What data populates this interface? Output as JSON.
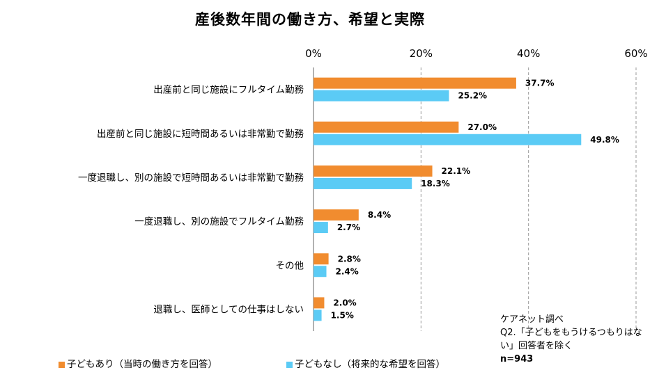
{
  "chart_data": {
    "type": "bar",
    "orientation": "horizontal",
    "title": "産後数年間の働き方、希望と実際",
    "categories": [
      "出産前と同じ施設にフルタイム勤務",
      "出産前と同じ施設に短時間あるいは非常勤で勤務",
      "一度退職し、別の施設で短時間あるいは非常勤で勤務",
      "一度退職し、別の施設でフルタイム勤務",
      "その他",
      "退職し、医師としての仕事はしない"
    ],
    "series": [
      {
        "name": "子どもあり（当時の働き方を回答）",
        "color": "#F18C2F",
        "values": [
          37.7,
          27.0,
          22.1,
          8.4,
          2.8,
          2.0
        ],
        "labels": [
          "37.7%",
          "27.0%",
          "22.1%",
          "8.4%",
          "2.8%",
          "2.0%"
        ]
      },
      {
        "name": "子どもなし（将来的な希望を回答）",
        "color": "#5BCBF5",
        "values": [
          25.2,
          49.8,
          18.3,
          2.7,
          2.4,
          1.5
        ],
        "labels": [
          "25.2%",
          "49.8%",
          "18.3%",
          "2.7%",
          "2.4%",
          "1.5%"
        ]
      }
    ],
    "xlim": [
      0,
      60
    ],
    "xticks": [
      0,
      20,
      40,
      60
    ],
    "xtick_labels": [
      "0%",
      "20%",
      "40%",
      "60%"
    ],
    "axis_position": "top",
    "grid": "dashed vertical",
    "legend_position": "bottom"
  },
  "source": {
    "line1": "ケアネット調べ",
    "line2": "Q2.「子どもをもうけるつもりはな",
    "line3": "い」回答者を除く",
    "line4": "n=943"
  }
}
